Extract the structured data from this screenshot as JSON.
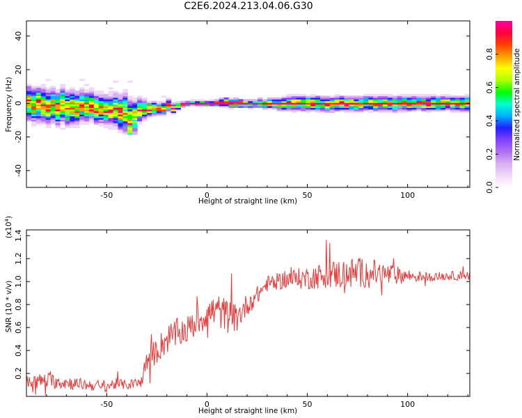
{
  "page": {
    "title": "C2E6.2024.213.04.06.G30"
  },
  "colors": {
    "snr_line": "#ee3333",
    "colormap": [
      "#ffffff",
      "#f0d8f8",
      "#d8b0f4",
      "#b070f0",
      "#8040ff",
      "#2020ff",
      "#00b0ff",
      "#00ffd0",
      "#00ff00",
      "#b0ff00",
      "#ffff00",
      "#ffa000",
      "#ff4000",
      "#ff0040",
      "#ff00a0"
    ]
  },
  "chart_data": [
    {
      "type": "heatmap",
      "title": "C2E6.2024.213.04.06.G30",
      "xlabel": "Height of straight line (km)",
      "ylabel": "Frequency (Hz)",
      "xlim": [
        -90,
        131
      ],
      "ylim": [
        -50,
        49
      ],
      "xticks": [
        -50,
        0,
        50,
        100
      ],
      "xtick_labels": [
        "-50",
        "0",
        "50",
        "100"
      ],
      "yticks": [
        40,
        20,
        0,
        -20,
        -40
      ],
      "ytick_labels": [
        "40",
        "20",
        "0",
        "-20",
        "-40"
      ],
      "grid": false,
      "colorbar": {
        "label": "Normalized spectral amplitude",
        "range": [
          0,
          1
        ],
        "ticks": [
          0.0,
          0.2,
          0.4,
          0.6,
          0.8
        ],
        "tick_labels": [
          "0.0",
          "0.2",
          "0.4",
          "0.6",
          "0.8"
        ]
      },
      "ridge": {
        "x": [
          -90,
          -80,
          -70,
          -60,
          -50,
          -45,
          -42,
          -40,
          -35,
          -30,
          -25,
          -20,
          -15,
          -12,
          0,
          10,
          20,
          30,
          40,
          50,
          60,
          70,
          80,
          90,
          100,
          110,
          120,
          131
        ],
        "center_hz": [
          0,
          -1,
          -2,
          -1,
          -4,
          -5,
          -6,
          -10,
          -5,
          -3,
          -3,
          -2,
          -1,
          0,
          0,
          0.5,
          0,
          0,
          0,
          0,
          0,
          0,
          0,
          0,
          0,
          0,
          0,
          0
        ],
        "spread_hz": [
          7,
          7,
          7,
          6,
          6,
          7,
          8,
          9,
          5,
          3,
          2.5,
          2.5,
          1.5,
          1,
          1,
          2,
          1.5,
          2,
          3,
          3,
          3,
          3,
          3,
          3,
          3,
          3,
          3,
          3
        ]
      }
    },
    {
      "type": "line",
      "title": "",
      "xlabel": "Height of straight line (km)",
      "ylabel": "SNR (10 * v/v)",
      "scale_label": "(x10",
      "scale_exponent": "4",
      "xlim": [
        -90,
        131
      ],
      "ylim": [
        0.0,
        1.45
      ],
      "xticks": [
        -50,
        0,
        50,
        100
      ],
      "xtick_labels": [
        "-50",
        "0",
        "50",
        "100"
      ],
      "yticks": [
        0.2,
        0.4,
        0.6,
        0.8,
        1.0,
        1.2,
        1.4
      ],
      "ytick_labels": [
        "0.2",
        "0.4",
        "0.6",
        "0.8",
        "1.0",
        "1.2",
        "1.4"
      ],
      "grid": false,
      "series": [
        {
          "x": [
            -90,
            -80,
            -70,
            -60,
            -50,
            -45,
            -40,
            -33,
            -30,
            -25,
            -20,
            -15,
            -10,
            -5,
            0,
            5,
            10,
            15,
            20,
            25,
            30,
            40,
            50,
            60,
            70,
            80,
            90,
            100,
            110,
            120,
            131
          ],
          "values": [
            0.12,
            0.14,
            0.12,
            0.1,
            0.09,
            0.11,
            0.1,
            0.12,
            0.3,
            0.4,
            0.5,
            0.55,
            0.58,
            0.65,
            0.72,
            0.75,
            0.7,
            0.68,
            0.8,
            0.88,
            0.98,
            1.02,
            1.03,
            1.06,
            1.07,
            1.08,
            1.06,
            1.05,
            1.04,
            1.05,
            1.05
          ],
          "noise": [
            0.06,
            0.07,
            0.06,
            0.05,
            0.05,
            0.05,
            0.04,
            0.05,
            0.1,
            0.12,
            0.13,
            0.13,
            0.12,
            0.13,
            0.13,
            0.15,
            0.15,
            0.12,
            0.1,
            0.08,
            0.07,
            0.08,
            0.1,
            0.12,
            0.14,
            0.13,
            0.1,
            0.06,
            0.04,
            0.04,
            0.04
          ]
        }
      ]
    }
  ]
}
